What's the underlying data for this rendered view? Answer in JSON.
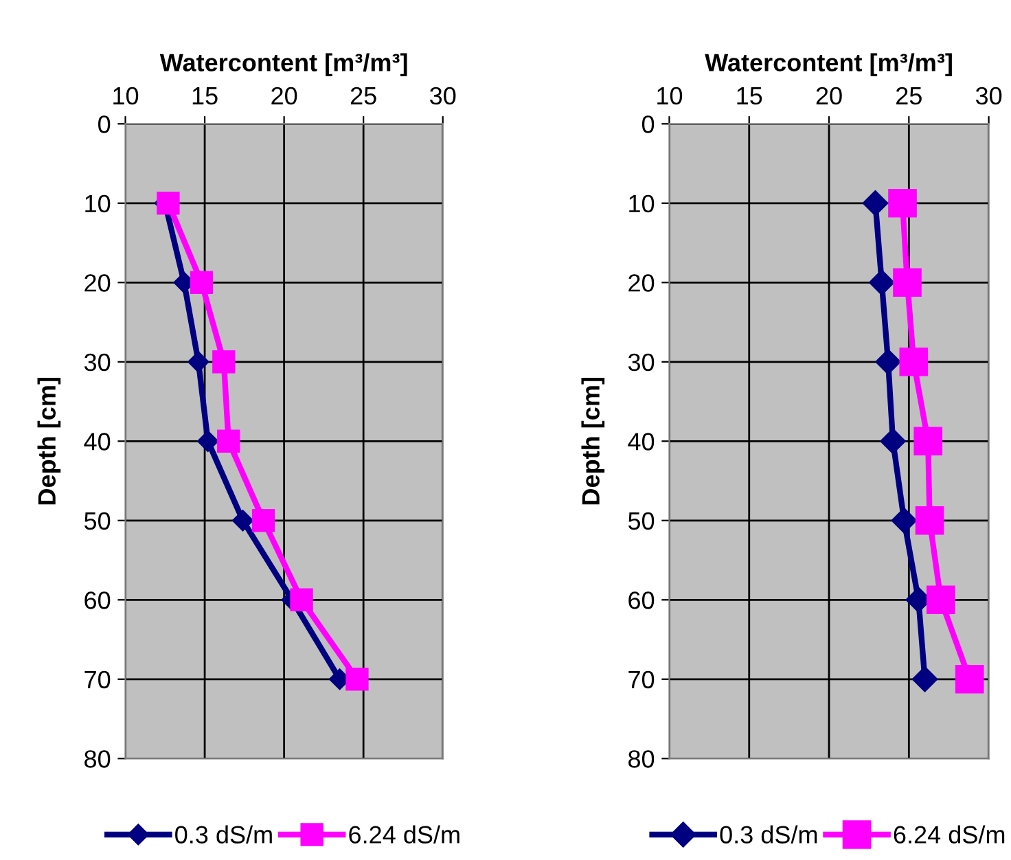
{
  "chart_data": [
    {
      "type": "line",
      "orientation": "horizontal",
      "xlabel": "Watercontent [m³/m³]",
      "ylabel": "Depth [cm]",
      "xlim": [
        10,
        30
      ],
      "xticks": [
        10,
        15,
        20,
        25,
        30
      ],
      "ylim": [
        80,
        0
      ],
      "yticks": [
        0,
        10,
        20,
        30,
        40,
        50,
        60,
        70,
        80
      ],
      "x": [
        10,
        20,
        30,
        40,
        50,
        60,
        70
      ],
      "grid": true,
      "legend": "bottom",
      "series": [
        {
          "name": "0.3 dS/m",
          "color": "#000080",
          "marker": "diamond",
          "values": [
            12.5,
            13.7,
            14.6,
            15.2,
            17.4,
            20.5,
            23.5
          ]
        },
        {
          "name": "6.24 dS/m",
          "color": "#ff00ff",
          "marker": "square",
          "values": [
            12.7,
            14.8,
            16.2,
            16.5,
            18.7,
            21.1,
            24.6
          ]
        }
      ]
    },
    {
      "type": "line",
      "orientation": "horizontal",
      "xlabel": "Watercontent [m³/m³]",
      "ylabel": "Depth [cm]",
      "xlim": [
        10,
        30
      ],
      "xticks": [
        10,
        15,
        20,
        25,
        30
      ],
      "ylim": [
        80,
        0
      ],
      "yticks": [
        0,
        10,
        20,
        30,
        40,
        50,
        60,
        70,
        80
      ],
      "x": [
        10,
        20,
        30,
        40,
        50,
        60,
        70
      ],
      "grid": true,
      "legend": "bottom",
      "series": [
        {
          "name": "0.3 dS/m",
          "color": "#000080",
          "marker": "diamond",
          "values": [
            22.9,
            23.3,
            23.7,
            24.0,
            24.7,
            25.6,
            26.0
          ]
        },
        {
          "name": "6.24 dS/m",
          "color": "#ff00ff",
          "marker": "square",
          "values": [
            24.6,
            24.9,
            25.3,
            26.2,
            26.3,
            27.0,
            28.8
          ]
        }
      ]
    }
  ]
}
